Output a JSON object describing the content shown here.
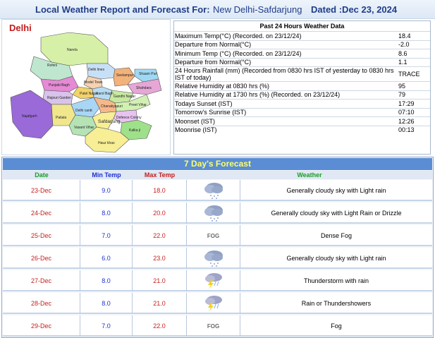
{
  "header": {
    "prefix": "Local Weather Report and Forecast For:",
    "station": "New Delhi-Safdarjung",
    "date": "Dated :Dec 23, 2024"
  },
  "map": {
    "title": "Delhi",
    "districts": [
      "Narela",
      "Rohini",
      "Delhi lines",
      "Model Town",
      "Shahdara",
      "Seelampur",
      "Punjabi Bagh",
      "Patel Nagar",
      "Rajouri Garden",
      "Karol Bagh",
      "Gandhi Nagar",
      "Najafgarh",
      "Patiala",
      "Delhi cantt",
      "Vasant Vihar",
      "Safdarjung",
      "Chanakyapuri",
      "Preet Vihar",
      "Defence Colony",
      "Kalka ji",
      "Hauz khas",
      "Shaam Puri",
      "Daryaganj"
    ]
  },
  "past24": {
    "title": "Past 24 Hours Weather Data",
    "rows": [
      {
        "label": "Maximum Temp(°C) (Recorded. on 23/12/24)",
        "value": "18.4"
      },
      {
        "label": "Departure from Normal(°C)",
        "value": "-2.0"
      },
      {
        "label": "Minimum Temp (°C) (Recorded. on 23/12/24)",
        "value": "8.6"
      },
      {
        "label": "Departure from Normal(°C)",
        "value": "1.1"
      },
      {
        "label": "24 Hours Rainfall (mm) (Recorded from 0830 hrs IST of yesterday to 0830 hrs IST of today)",
        "value": "TRACE"
      },
      {
        "label": "Relative Humidity at 0830 hrs (%)",
        "value": "95"
      },
      {
        "label": "Relative Humidity at 1730 hrs (%) (Recorded. on 23/12/24)",
        "value": "79"
      },
      {
        "label": "Todays Sunset (IST)",
        "value": "17:29"
      },
      {
        "label": "Tomorrow's Sunrise (IST)",
        "value": "07:10"
      },
      {
        "label": "Moonset (IST)",
        "value": "12:26"
      },
      {
        "label": "Moonrise (IST)",
        "value": "00:13"
      }
    ]
  },
  "forecast": {
    "title": "7 Day's Forecast",
    "headers": {
      "date": "Date",
      "min": "Min Temp",
      "max": "Max Temp",
      "weather": "Weather"
    },
    "fog_label": "FOG",
    "days": [
      {
        "date": "23-Dec",
        "min": "9.0",
        "max": "18.0",
        "icon": "cloud-rain-icon",
        "weather": "Generally cloudy sky with Light rain"
      },
      {
        "date": "24-Dec",
        "min": "8.0",
        "max": "20.0",
        "icon": "cloud-rain-icon",
        "weather": "Generally cloudy sky with Light Rain or Drizzle"
      },
      {
        "date": "25-Dec",
        "min": "7.0",
        "max": "22.0",
        "icon": "fog-icon",
        "weather": "Dense Fog"
      },
      {
        "date": "26-Dec",
        "min": "6.0",
        "max": "23.0",
        "icon": "cloud-rain-icon",
        "weather": "Generally cloudy sky with Light rain"
      },
      {
        "date": "27-Dec",
        "min": "8.0",
        "max": "21.0",
        "icon": "thunderstorm-icon",
        "weather": "Thunderstorm with rain"
      },
      {
        "date": "28-Dec",
        "min": "8.0",
        "max": "21.0",
        "icon": "thunderstorm-icon",
        "weather": "Rain or Thundershowers"
      },
      {
        "date": "29-Dec",
        "min": "7.0",
        "max": "22.0",
        "icon": "fog-icon",
        "weather": "Fog"
      }
    ]
  },
  "colors": {
    "title_blue": "#1f3d8a",
    "forecast_bar": "#5a8dd3",
    "forecast_title_text": "#ffff66",
    "min_temp": "#1d2fd4",
    "max_temp": "#c51e1e",
    "date_header": "#1a9c25"
  }
}
